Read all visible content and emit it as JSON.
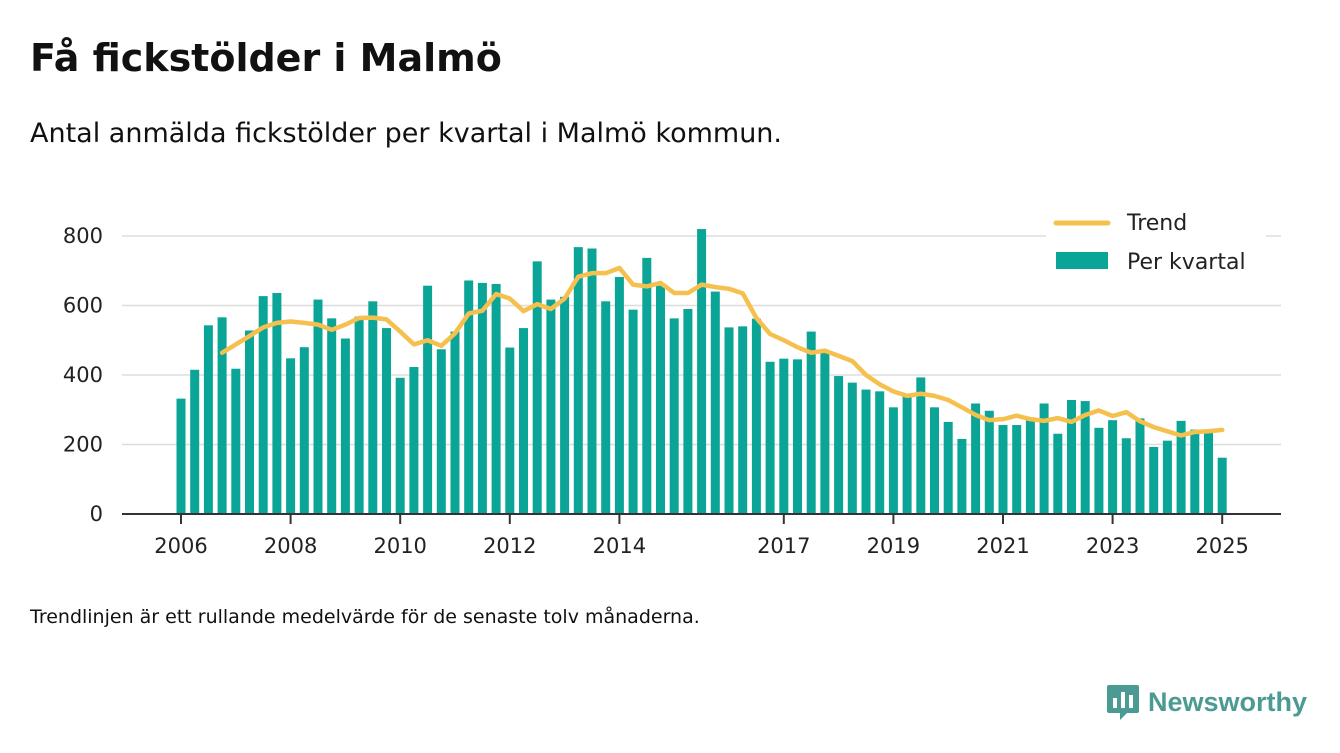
{
  "title": "Få fickstölder i Malmö",
  "subtitle": "Antal anmälda fickstölder per kvartal i Malmö kommun.",
  "note": "Trendlinjen är ett rullande medelvärde för de senaste tolv månaderna.",
  "brand": "Newsworthy",
  "colors": {
    "bar": "#0ba597",
    "trend": "#f5c04e",
    "axis": "#333333",
    "grid": "#dddddd",
    "brand": "#4b9a93"
  },
  "chart_data": {
    "type": "bar",
    "title": "Få fickstölder i Malmö",
    "subtitle": "Antal anmälda fickstölder per kvartal i Malmö kommun.",
    "xlabel": "",
    "ylabel": "",
    "ylim": [
      0,
      900
    ],
    "yticks": [
      0,
      200,
      400,
      600,
      800
    ],
    "xtick_labels": [
      "2006",
      "2008",
      "2010",
      "2012",
      "2014",
      "2017",
      "2019",
      "2021",
      "2023",
      "2025"
    ],
    "grid": true,
    "legend_position": "top-right",
    "categories": [
      "2006 Q1",
      "2006 Q2",
      "2006 Q3",
      "2006 Q4",
      "2007 Q1",
      "2007 Q2",
      "2007 Q3",
      "2007 Q4",
      "2008 Q1",
      "2008 Q2",
      "2008 Q3",
      "2008 Q4",
      "2009 Q1",
      "2009 Q2",
      "2009 Q3",
      "2009 Q4",
      "2010 Q1",
      "2010 Q2",
      "2010 Q3",
      "2010 Q4",
      "2011 Q1",
      "2011 Q2",
      "2011 Q3",
      "2011 Q4",
      "2012 Q1",
      "2012 Q2",
      "2012 Q3",
      "2012 Q4",
      "2013 Q1",
      "2013 Q2",
      "2013 Q3",
      "2013 Q4",
      "2014 Q1",
      "2014 Q2",
      "2014 Q3",
      "2014 Q4",
      "2015 Q1",
      "2015 Q2",
      "2015 Q3",
      "2015 Q4",
      "2016 Q1",
      "2016 Q2",
      "2016 Q3",
      "2016 Q4",
      "2017 Q1",
      "2017 Q2",
      "2017 Q3",
      "2017 Q4",
      "2018 Q1",
      "2018 Q2",
      "2018 Q3",
      "2018 Q4",
      "2019 Q1",
      "2019 Q2",
      "2019 Q3",
      "2019 Q4",
      "2020 Q1",
      "2020 Q2",
      "2020 Q3",
      "2020 Q4",
      "2021 Q1",
      "2021 Q2",
      "2021 Q3",
      "2021 Q4",
      "2022 Q1",
      "2022 Q2",
      "2022 Q3",
      "2022 Q4",
      "2023 Q1",
      "2023 Q2",
      "2023 Q3",
      "2023 Q4",
      "2024 Q1",
      "2024 Q2",
      "2024 Q3",
      "2024 Q4",
      "2025 Q1"
    ],
    "series": [
      {
        "name": "Per kvartal",
        "type": "bar",
        "values": [
          332,
          415,
          543,
          566,
          418,
          528,
          627,
          636,
          448,
          480,
          617,
          563,
          505,
          568,
          612,
          535,
          392,
          423,
          657,
          474,
          525,
          672,
          665,
          662,
          479,
          535,
          727,
          617,
          625,
          768,
          764,
          612,
          682,
          588,
          737,
          657,
          563,
          590,
          820,
          640,
          537,
          540,
          562,
          438,
          447,
          445,
          525,
          472,
          397,
          378,
          358,
          353,
          307,
          345,
          393,
          307,
          265,
          216,
          318,
          297,
          256,
          256,
          270,
          318,
          231,
          328,
          325,
          248,
          270,
          218,
          275,
          193,
          211,
          268,
          243,
          234,
          162
        ]
      },
      {
        "name": "Trend",
        "type": "line",
        "values": [
          null,
          null,
          null,
          464,
          488,
          512,
          537,
          550,
          554,
          550,
          545,
          530,
          545,
          564,
          565,
          560,
          525,
          488,
          500,
          484,
          520,
          577,
          585,
          633,
          620,
          584,
          604,
          590,
          620,
          683,
          693,
          693,
          708,
          660,
          655,
          665,
          636,
          636,
          660,
          653,
          648,
          635,
          564,
          518,
          500,
          480,
          464,
          470,
          455,
          440,
          400,
          373,
          353,
          340,
          346,
          340,
          328,
          307,
          285,
          270,
          273,
          283,
          273,
          268,
          276,
          265,
          285,
          298,
          282,
          293,
          267,
          250,
          238,
          226,
          236,
          238,
          242
        ]
      }
    ]
  }
}
